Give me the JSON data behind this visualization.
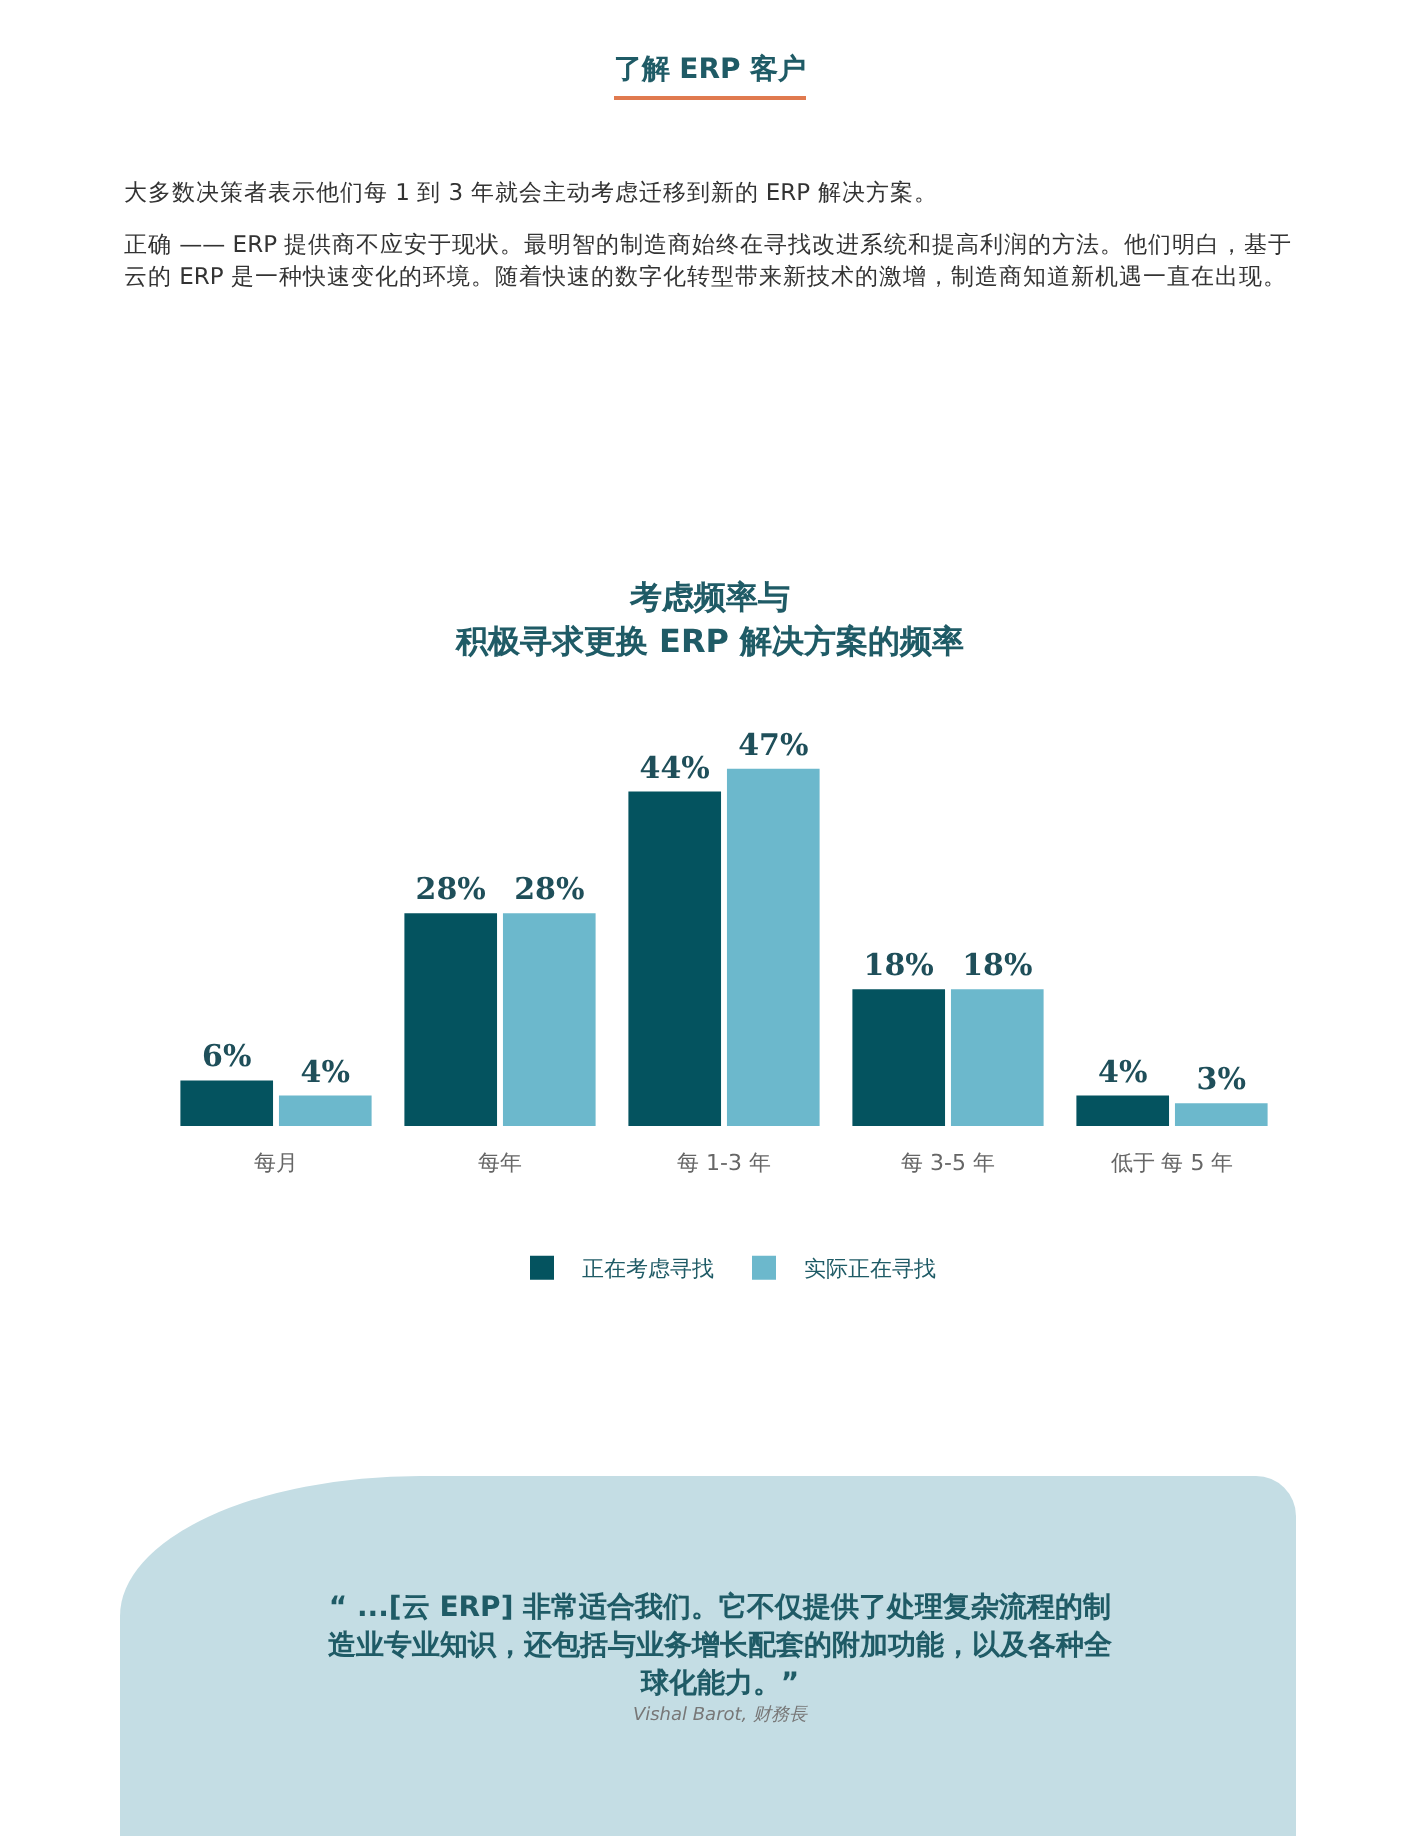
{
  "chart_data": {
    "type": "bar",
    "title": "考虑频率与",
    "subtitle": "积极寻求更换 ERP 解决方案的频率",
    "categories": [
      "每月",
      "每年",
      "每 1-3 年",
      "每 3-5 年",
      "低于 每 5 年"
    ],
    "series": [
      {
        "name": "正在考虑寻找",
        "color": "#04535f",
        "values": [
          6,
          28,
          44,
          18,
          4
        ],
        "value_labels": [
          "6%",
          "28%",
          "44%",
          "18%",
          "4%"
        ]
      },
      {
        "name": "实际正在寻找",
        "color": "#6cb8cc",
        "values": [
          4,
          28,
          47,
          18,
          3
        ],
        "value_labels": [
          "4%",
          "28%",
          "47%",
          "18%",
          "3%"
        ]
      }
    ],
    "legend": "bottom",
    "grid": false,
    "annotations": [
      "了解 ERP 客户",
      "大多数决策者表示他们每 1 到 3 年就会主动考虑迁移到新的 ERP 解决方案。",
      "正确 —— ERP 提供商不应安于现状。最明智的制造商始终在寻找改进系统和提高利润的方法。他们明白，基于云的 ERP 是一种快速变化的环境。随着快速的数字化转型带来新技术的激增，制造商知道新机遇一直在出现。",
      "“ ...[云 ERP] 非常适合我们。它不仅提供了处理复杂流程的制造业专业知识，还包括与业务增长配套的附加功能，以及各种全球化能力。”",
      "Vishal Barot, 财務長"
    ]
  }
}
